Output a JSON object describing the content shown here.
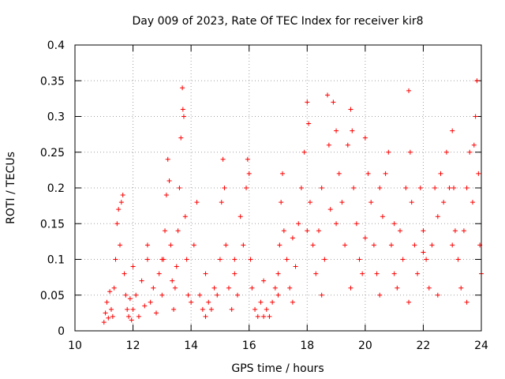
{
  "chart_data": {
    "type": "scatter",
    "title": "Day 009 of 2023, Rate Of TEC Index for receiver kir8",
    "xlabel": "GPS time / hours",
    "ylabel": "ROTI / TECUs",
    "xlim": [
      10,
      24
    ],
    "ylim": [
      0,
      0.4
    ],
    "x_ticks": [
      10,
      12,
      14,
      16,
      18,
      20,
      22,
      24
    ],
    "x_tick_labels": [
      "10",
      "12",
      "14",
      "16",
      "18",
      "20",
      "22",
      "24"
    ],
    "y_ticks": [
      0,
      0.05,
      0.1,
      0.15,
      0.2,
      0.25,
      0.3,
      0.35,
      0.4
    ],
    "y_tick_labels": [
      "0",
      "0.05",
      "0.1",
      "0.15",
      "0.2",
      "0.25",
      "0.3",
      "0.35",
      "0.4"
    ],
    "grid": true,
    "marker": "plus",
    "color": "#ff0000",
    "points": [
      [
        11.0,
        0.012
      ],
      [
        11.05,
        0.025
      ],
      [
        11.1,
        0.04
      ],
      [
        11.15,
        0.018
      ],
      [
        11.2,
        0.055
      ],
      [
        11.25,
        0.03
      ],
      [
        11.3,
        0.02
      ],
      [
        11.35,
        0.06
      ],
      [
        11.4,
        0.1
      ],
      [
        11.45,
        0.15
      ],
      [
        11.5,
        0.17
      ],
      [
        11.55,
        0.12
      ],
      [
        11.6,
        0.18
      ],
      [
        11.65,
        0.19
      ],
      [
        11.7,
        0.08
      ],
      [
        11.75,
        0.05
      ],
      [
        11.8,
        0.03
      ],
      [
        11.85,
        0.02
      ],
      [
        11.9,
        0.045
      ],
      [
        11.95,
        0.015
      ],
      [
        12.0,
        0.03
      ],
      [
        12.1,
        0.05
      ],
      [
        12.2,
        0.02
      ],
      [
        12.3,
        0.07
      ],
      [
        12.4,
        0.035
      ],
      [
        12.5,
        0.1
      ],
      [
        12.6,
        0.04
      ],
      [
        12.7,
        0.06
      ],
      [
        12.8,
        0.025
      ],
      [
        12.9,
        0.08
      ],
      [
        13.0,
        0.05
      ],
      [
        13.05,
        0.1
      ],
      [
        13.1,
        0.14
      ],
      [
        13.15,
        0.19
      ],
      [
        13.2,
        0.24
      ],
      [
        13.25,
        0.21
      ],
      [
        13.3,
        0.12
      ],
      [
        13.35,
        0.07
      ],
      [
        13.4,
        0.03
      ],
      [
        13.45,
        0.06
      ],
      [
        13.5,
        0.09
      ],
      [
        13.55,
        0.14
      ],
      [
        13.6,
        0.2
      ],
      [
        13.65,
        0.27
      ],
      [
        13.7,
        0.34
      ],
      [
        13.72,
        0.31
      ],
      [
        13.75,
        0.3
      ],
      [
        13.8,
        0.16
      ],
      [
        13.85,
        0.1
      ],
      [
        13.9,
        0.05
      ],
      [
        14.0,
        0.04
      ],
      [
        14.1,
        0.12
      ],
      [
        14.2,
        0.18
      ],
      [
        14.3,
        0.05
      ],
      [
        14.4,
        0.03
      ],
      [
        14.5,
        0.02
      ],
      [
        14.6,
        0.04
      ],
      [
        14.7,
        0.03
      ],
      [
        14.8,
        0.06
      ],
      [
        14.9,
        0.05
      ],
      [
        15.0,
        0.1
      ],
      [
        15.05,
        0.18
      ],
      [
        15.1,
        0.24
      ],
      [
        15.15,
        0.2
      ],
      [
        15.2,
        0.12
      ],
      [
        15.3,
        0.06
      ],
      [
        15.4,
        0.03
      ],
      [
        15.5,
        0.08
      ],
      [
        15.6,
        0.05
      ],
      [
        15.7,
        0.16
      ],
      [
        15.8,
        0.12
      ],
      [
        15.9,
        0.2
      ],
      [
        15.95,
        0.24
      ],
      [
        16.0,
        0.22
      ],
      [
        16.05,
        0.1
      ],
      [
        16.1,
        0.06
      ],
      [
        16.2,
        0.03
      ],
      [
        16.3,
        0.02
      ],
      [
        16.4,
        0.04
      ],
      [
        16.5,
        0.02
      ],
      [
        16.6,
        0.03
      ],
      [
        16.7,
        0.02
      ],
      [
        16.8,
        0.04
      ],
      [
        16.9,
        0.06
      ],
      [
        17.0,
        0.08
      ],
      [
        17.05,
        0.12
      ],
      [
        17.1,
        0.18
      ],
      [
        17.15,
        0.22
      ],
      [
        17.2,
        0.14
      ],
      [
        17.3,
        0.1
      ],
      [
        17.4,
        0.06
      ],
      [
        17.5,
        0.13
      ],
      [
        17.6,
        0.09
      ],
      [
        17.7,
        0.15
      ],
      [
        17.8,
        0.2
      ],
      [
        17.9,
        0.25
      ],
      [
        18.0,
        0.32
      ],
      [
        18.05,
        0.29
      ],
      [
        18.1,
        0.18
      ],
      [
        18.2,
        0.12
      ],
      [
        18.3,
        0.08
      ],
      [
        18.4,
        0.14
      ],
      [
        18.5,
        0.2
      ],
      [
        18.6,
        0.1
      ],
      [
        18.7,
        0.33
      ],
      [
        18.75,
        0.26
      ],
      [
        18.8,
        0.17
      ],
      [
        18.9,
        0.32
      ],
      [
        19.0,
        0.28
      ],
      [
        19.1,
        0.22
      ],
      [
        19.2,
        0.18
      ],
      [
        19.3,
        0.12
      ],
      [
        19.4,
        0.26
      ],
      [
        19.5,
        0.31
      ],
      [
        19.55,
        0.28
      ],
      [
        19.6,
        0.2
      ],
      [
        19.7,
        0.15
      ],
      [
        19.8,
        0.1
      ],
      [
        19.9,
        0.08
      ],
      [
        20.0,
        0.27
      ],
      [
        20.1,
        0.22
      ],
      [
        20.2,
        0.18
      ],
      [
        20.3,
        0.12
      ],
      [
        20.4,
        0.08
      ],
      [
        20.5,
        0.2
      ],
      [
        20.6,
        0.16
      ],
      [
        20.7,
        0.22
      ],
      [
        20.8,
        0.25
      ],
      [
        20.9,
        0.12
      ],
      [
        21.0,
        0.08
      ],
      [
        21.1,
        0.06
      ],
      [
        21.2,
        0.14
      ],
      [
        21.3,
        0.1
      ],
      [
        21.4,
        0.2
      ],
      [
        21.5,
        0.336
      ],
      [
        21.55,
        0.25
      ],
      [
        21.6,
        0.18
      ],
      [
        21.7,
        0.12
      ],
      [
        21.8,
        0.08
      ],
      [
        21.9,
        0.2
      ],
      [
        22.0,
        0.14
      ],
      [
        22.1,
        0.1
      ],
      [
        22.2,
        0.06
      ],
      [
        22.3,
        0.12
      ],
      [
        22.4,
        0.2
      ],
      [
        22.5,
        0.16
      ],
      [
        22.6,
        0.22
      ],
      [
        22.7,
        0.18
      ],
      [
        22.8,
        0.25
      ],
      [
        22.9,
        0.2
      ],
      [
        23.0,
        0.28
      ],
      [
        23.05,
        0.2
      ],
      [
        23.1,
        0.14
      ],
      [
        23.2,
        0.1
      ],
      [
        23.3,
        0.06
      ],
      [
        23.4,
        0.14
      ],
      [
        23.5,
        0.2
      ],
      [
        23.6,
        0.25
      ],
      [
        23.7,
        0.18
      ],
      [
        23.75,
        0.26
      ],
      [
        23.8,
        0.3
      ],
      [
        23.85,
        0.35
      ],
      [
        23.9,
        0.22
      ],
      [
        23.95,
        0.12
      ],
      [
        24.0,
        0.08
      ],
      [
        12.0,
        0.09
      ],
      [
        12.5,
        0.12
      ],
      [
        13.0,
        0.1
      ],
      [
        14.5,
        0.08
      ],
      [
        15.5,
        0.1
      ],
      [
        16.5,
        0.07
      ],
      [
        17.5,
        0.04
      ],
      [
        18.5,
        0.05
      ],
      [
        19.5,
        0.06
      ],
      [
        20.5,
        0.05
      ],
      [
        21.5,
        0.04
      ],
      [
        22.5,
        0.05
      ],
      [
        23.5,
        0.04
      ],
      [
        19.0,
        0.15
      ],
      [
        20.0,
        0.13
      ],
      [
        21.0,
        0.15
      ],
      [
        22.0,
        0.11
      ],
      [
        23.0,
        0.12
      ],
      [
        18.0,
        0.14
      ],
      [
        17.0,
        0.05
      ]
    ]
  }
}
